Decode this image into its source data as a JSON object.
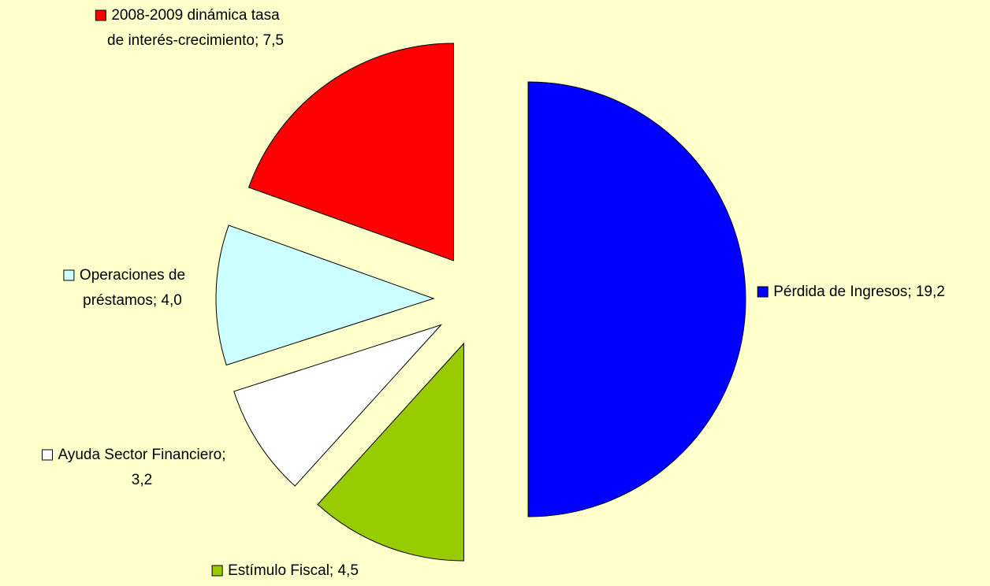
{
  "chart_data": {
    "type": "pie",
    "values": [
      19.2,
      4.5,
      3.2,
      4.0,
      7.5
    ],
    "labels": [
      [
        "Pérdida de Ingresos; 19,2"
      ],
      [
        "Estímulo Fiscal; 4,5"
      ],
      [
        "Ayuda Sector Financiero;",
        "3,2"
      ],
      [
        "Operaciones de",
        "préstamos; 4,0"
      ],
      [
        "2008-2009 dinámica tasa",
        "de interés-crecimiento; 7,5"
      ]
    ],
    "colors": [
      "#0000ff",
      "#99cc00",
      "#ffffff",
      "#ccffff",
      "#ff0000"
    ],
    "exploded": true
  }
}
